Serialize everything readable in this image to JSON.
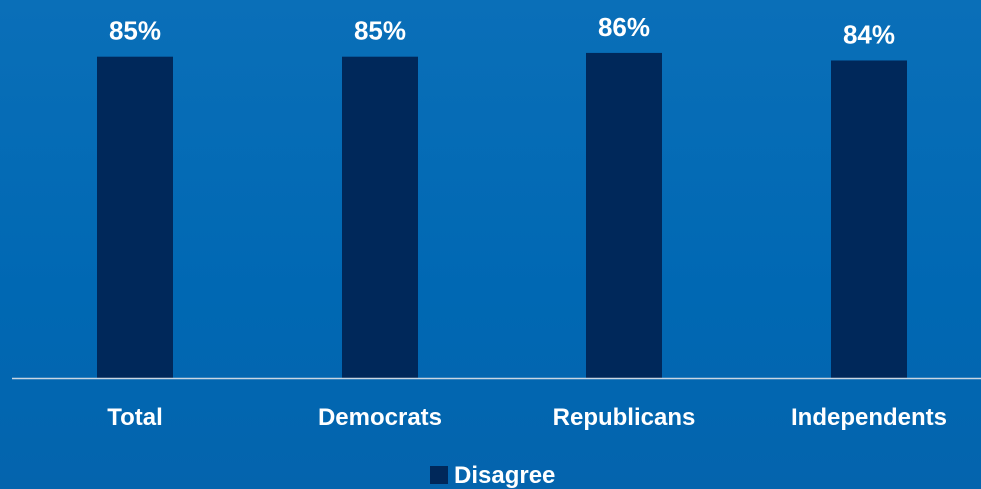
{
  "chart_data": {
    "type": "bar",
    "categories": [
      "Total",
      "Democrats",
      "Republicans",
      "Independents"
    ],
    "series": [
      {
        "name": "Disagree",
        "values": [
          85,
          85,
          86,
          84
        ],
        "data_labels": [
          "85%",
          "85%",
          "86%",
          "84%"
        ],
        "color": "#00285a"
      }
    ],
    "ylim": [
      0,
      100
    ],
    "grid": false,
    "legend_position": "bottom"
  },
  "colors": {
    "background": "#0069b4",
    "bar": "#00285a",
    "axis_line": "#c9d6e3",
    "text": "#ffffff"
  }
}
